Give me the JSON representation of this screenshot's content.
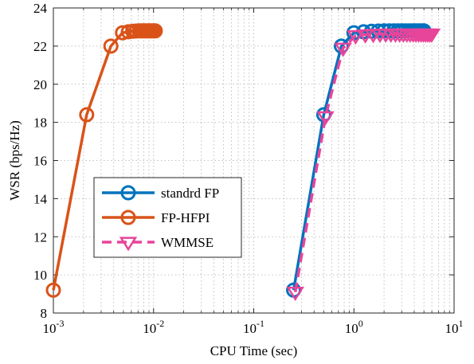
{
  "chart_data": {
    "type": "line",
    "xlabel": "CPU Time (sec)",
    "ylabel": "WSR (bps/Hz)",
    "xscale": "log",
    "xlim": [
      0.001,
      10
    ],
    "ylim": [
      8,
      24
    ],
    "grid": true,
    "x_ticks": [
      {
        "value": 0.001,
        "base": "10",
        "exp": "-3"
      },
      {
        "value": 0.01,
        "base": "10",
        "exp": "-2"
      },
      {
        "value": 0.1,
        "base": "10",
        "exp": "-1"
      },
      {
        "value": 1,
        "base": "10",
        "exp": "0"
      },
      {
        "value": 10,
        "base": "10",
        "exp": "1"
      }
    ],
    "y_ticks": [
      8,
      10,
      12,
      14,
      16,
      18,
      20,
      22,
      24
    ],
    "legend_position": "lower-left",
    "series": [
      {
        "name": "standrd FP",
        "color": "#0072BD",
        "line_style": "solid",
        "marker": "circle",
        "x": [
          0.25,
          0.5,
          0.75,
          1.0,
          1.25,
          1.5,
          1.75,
          2.0,
          2.25,
          2.5,
          2.75,
          3.0,
          3.25,
          3.5,
          3.75,
          4.0,
          4.25,
          4.5,
          4.75,
          5.0
        ],
        "y": [
          9.2,
          18.4,
          22.0,
          22.7,
          22.75,
          22.78,
          22.79,
          22.8,
          22.8,
          22.8,
          22.8,
          22.8,
          22.8,
          22.8,
          22.8,
          22.8,
          22.8,
          22.8,
          22.8,
          22.8
        ]
      },
      {
        "name": "FP-HFPI",
        "color": "#D95319",
        "line_style": "solid",
        "marker": "circle",
        "x": [
          0.001,
          0.00215,
          0.00375,
          0.0049,
          0.0056,
          0.0062,
          0.0067,
          0.0072,
          0.0076,
          0.008,
          0.0084,
          0.0088,
          0.0092,
          0.0096,
          0.01,
          0.0104
        ],
        "y": [
          9.2,
          18.4,
          22.0,
          22.7,
          22.75,
          22.78,
          22.79,
          22.8,
          22.8,
          22.8,
          22.8,
          22.8,
          22.8,
          22.8,
          22.8,
          22.8
        ]
      },
      {
        "name": "WMMSE",
        "color": "#E8449A",
        "line_style": "dashed",
        "marker": "triangle-down",
        "x": [
          0.26,
          0.52,
          0.78,
          1.04,
          1.3,
          1.56,
          1.82,
          2.08,
          2.34,
          2.6,
          2.86,
          3.12,
          3.38,
          3.64,
          3.9,
          4.16,
          4.42,
          4.68,
          4.94,
          5.2,
          5.46,
          5.72,
          5.98
        ],
        "y": [
          9.1,
          18.3,
          21.9,
          22.55,
          22.6,
          22.62,
          22.63,
          22.64,
          22.64,
          22.64,
          22.64,
          22.64,
          22.64,
          22.64,
          22.64,
          22.64,
          22.64,
          22.64,
          22.64,
          22.64,
          22.64,
          22.64,
          22.64
        ]
      }
    ]
  }
}
